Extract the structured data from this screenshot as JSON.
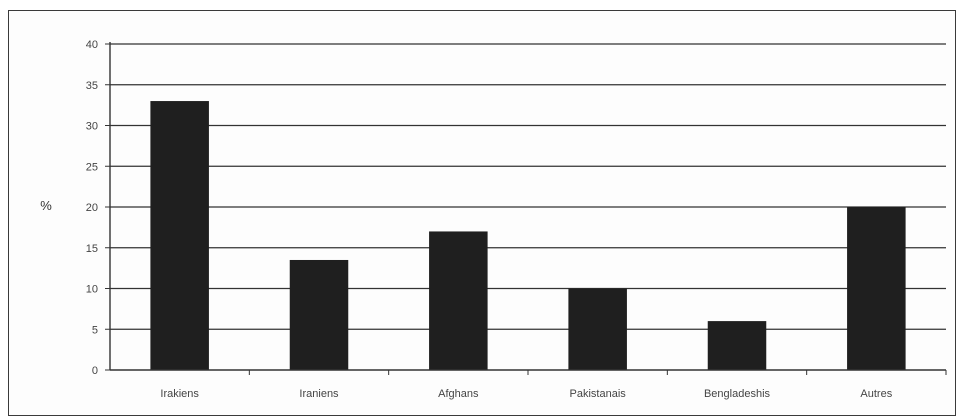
{
  "chart_data": {
    "type": "bar",
    "title": "",
    "xlabel": "",
    "ylabel": "%",
    "ylim": [
      0,
      40
    ],
    "yticks": [
      0,
      5,
      10,
      15,
      20,
      25,
      30,
      35,
      40
    ],
    "grid": true,
    "categories": [
      "Irakiens",
      "Iraniens",
      "Afghans",
      "Pakistanais",
      "Bengladeshis",
      "Autres"
    ],
    "values": [
      33,
      13.5,
      17,
      10,
      6,
      20
    ],
    "colors": {
      "bar": "#1f1f1f",
      "grid": "#333333",
      "axis": "#333333"
    }
  }
}
